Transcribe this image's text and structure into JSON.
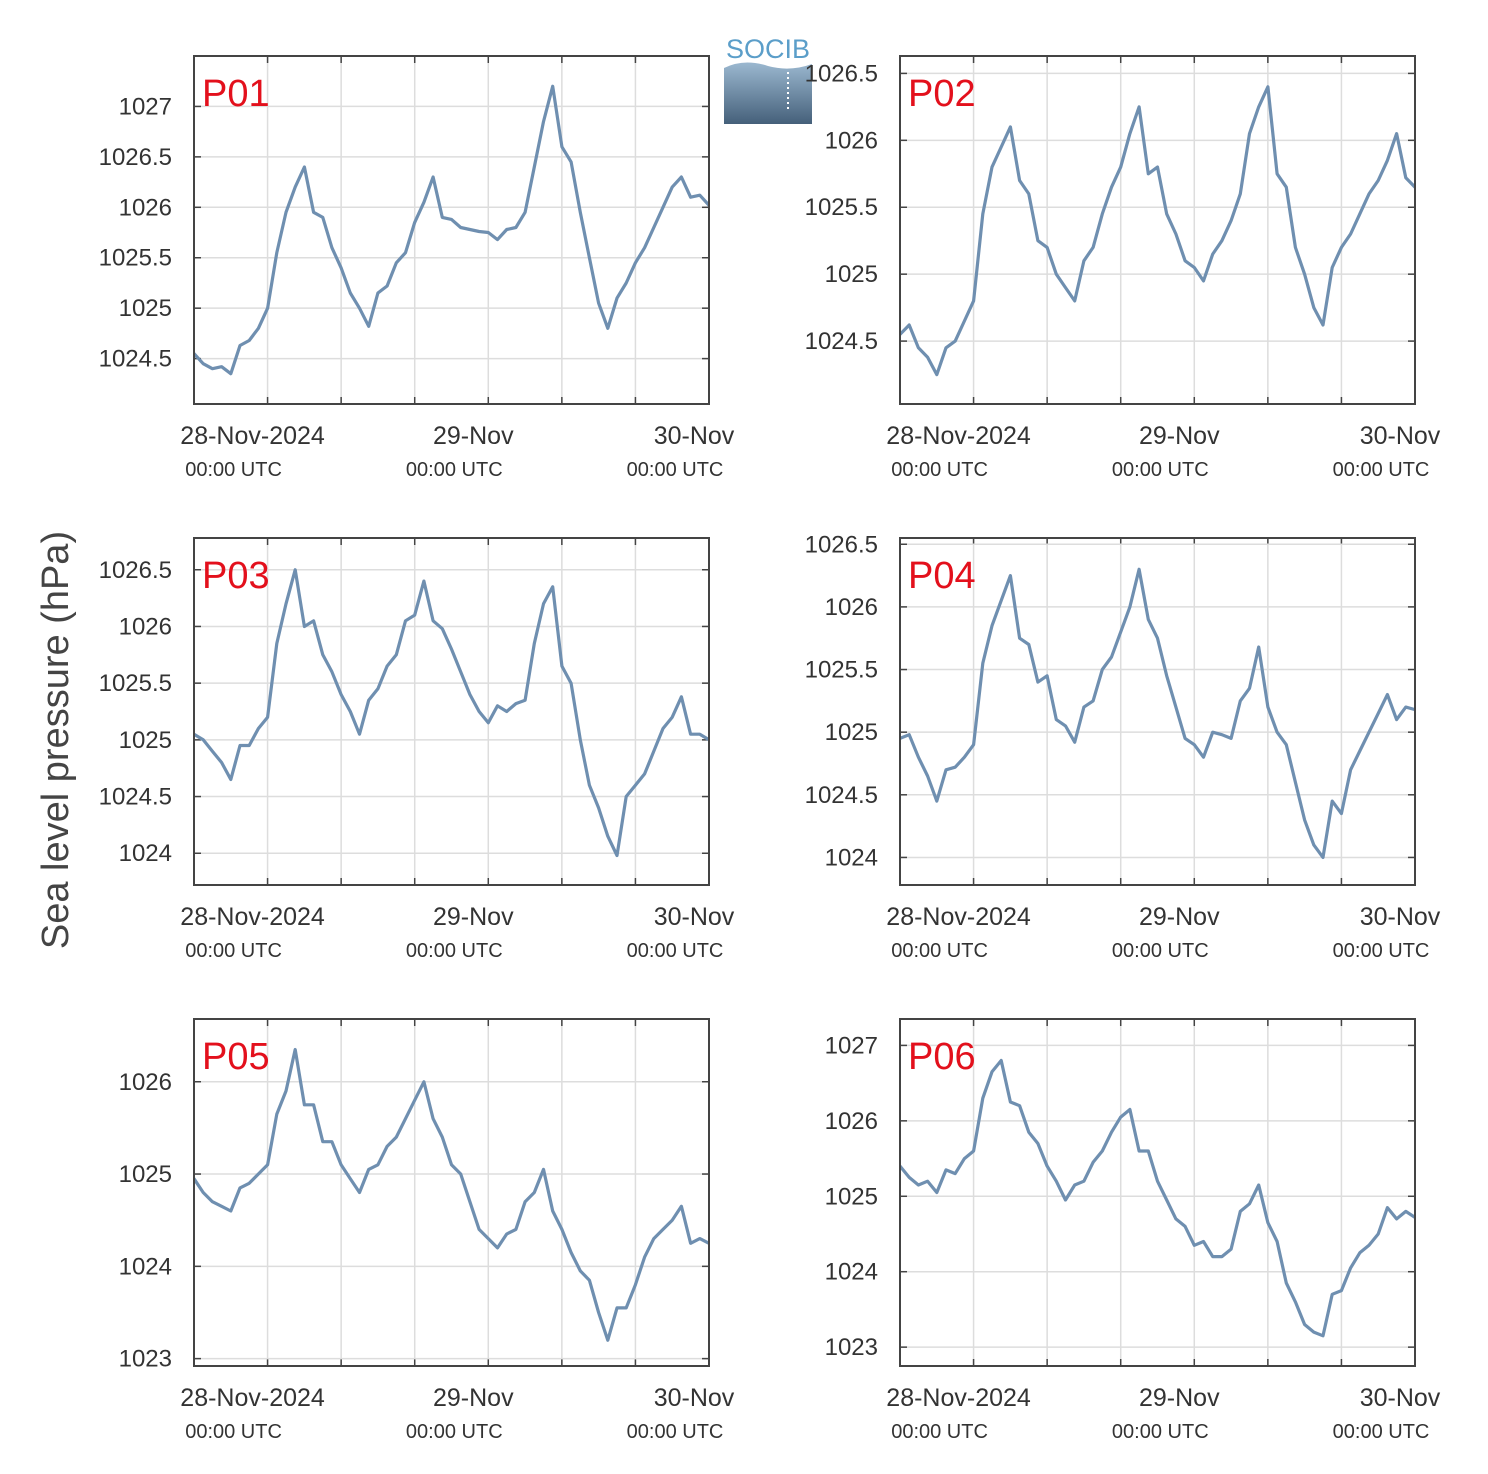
{
  "logo": {
    "text": "SOCIB",
    "color": "#5b9ec9"
  },
  "colors": {
    "line": "#6f8fb0",
    "panel_label": "#e3101c",
    "grid": "#dddddd",
    "axis": "#444444"
  },
  "shared": {
    "ylabel": "Sea level pressure (hPa)",
    "x_ticks": [
      {
        "hour": 0,
        "date": "28-Nov-2024",
        "time": "00:00 UTC"
      },
      {
        "hour": 24,
        "date": "29-Nov",
        "time": "00:00 UTC"
      },
      {
        "hour": 48,
        "date": "30-Nov",
        "time": "00:00 UTC"
      }
    ]
  },
  "chart_data": [
    {
      "type": "line",
      "title": "P01",
      "xunit": "hours since 28-Nov-2024 00:00 UTC",
      "xlim": [
        -8,
        48
      ],
      "ylim": [
        1024.05,
        1027.5
      ],
      "yticks": [
        1024.5,
        1025,
        1025.5,
        1026,
        1026.5,
        1027
      ],
      "ytick_labels": [
        "1024.5",
        "1025",
        "1025.5",
        "1026",
        "1026.5",
        "1027"
      ],
      "x": [
        -8,
        -7,
        -6,
        -5,
        -4,
        -3,
        -2,
        -1,
        0,
        1,
        2,
        3,
        4,
        5,
        6,
        7,
        8,
        9,
        10,
        11,
        12,
        13,
        14,
        15,
        16,
        17,
        18,
        19,
        20,
        21,
        22,
        23,
        24,
        25,
        26,
        27,
        28,
        29,
        30,
        31,
        32,
        33,
        34,
        35,
        36,
        37,
        38,
        39,
        40,
        41,
        42,
        43,
        44,
        45,
        46,
        47,
        48
      ],
      "y": [
        1024.55,
        1024.45,
        1024.4,
        1024.42,
        1024.35,
        1024.63,
        1024.68,
        1024.8,
        1025.0,
        1025.55,
        1025.95,
        1026.2,
        1026.4,
        1025.95,
        1025.9,
        1025.6,
        1025.4,
        1025.15,
        1025.0,
        1024.82,
        1025.15,
        1025.22,
        1025.45,
        1025.55,
        1025.85,
        1026.05,
        1026.3,
        1025.9,
        1025.88,
        1025.8,
        1025.78,
        1025.76,
        1025.75,
        1025.68,
        1025.78,
        1025.8,
        1025.95,
        1026.4,
        1026.85,
        1027.2,
        1026.6,
        1026.45,
        1025.95,
        1025.5,
        1025.05,
        1024.8,
        1025.1,
        1025.25,
        1025.45,
        1025.6,
        1025.8,
        1026.0,
        1026.2,
        1026.3,
        1026.1,
        1026.12,
        1026.02
      ]
    },
    {
      "type": "line",
      "title": "P02",
      "xunit": "hours since 28-Nov-2024 00:00 UTC",
      "xlim": [
        -8,
        48
      ],
      "ylim": [
        1024.03,
        1026.63
      ],
      "yticks": [
        1024.5,
        1025,
        1025.5,
        1026,
        1026.5
      ],
      "ytick_labels": [
        "1024.5",
        "1025",
        "1025.5",
        "1026",
        "1026.5"
      ],
      "x": [
        -8,
        -7,
        -6,
        -5,
        -4,
        -3,
        -2,
        -1,
        0,
        1,
        2,
        3,
        4,
        5,
        6,
        7,
        8,
        9,
        10,
        11,
        12,
        13,
        14,
        15,
        16,
        17,
        18,
        19,
        20,
        21,
        22,
        23,
        24,
        25,
        26,
        27,
        28,
        29,
        30,
        31,
        32,
        33,
        34,
        35,
        36,
        37,
        38,
        39,
        40,
        41,
        42,
        43,
        44,
        45,
        46,
        47,
        48
      ],
      "y": [
        1024.55,
        1024.62,
        1024.45,
        1024.38,
        1024.25,
        1024.45,
        1024.5,
        1024.65,
        1024.8,
        1025.45,
        1025.8,
        1025.95,
        1026.1,
        1025.7,
        1025.6,
        1025.25,
        1025.2,
        1025.0,
        1024.9,
        1024.8,
        1025.1,
        1025.2,
        1025.45,
        1025.65,
        1025.8,
        1026.05,
        1026.25,
        1025.75,
        1025.8,
        1025.45,
        1025.3,
        1025.1,
        1025.05,
        1024.95,
        1025.15,
        1025.25,
        1025.4,
        1025.6,
        1026.05,
        1026.25,
        1026.4,
        1025.75,
        1025.65,
        1025.2,
        1025.0,
        1024.75,
        1024.62,
        1025.05,
        1025.2,
        1025.3,
        1025.45,
        1025.6,
        1025.7,
        1025.85,
        1026.05,
        1025.72,
        1025.65
      ]
    },
    {
      "type": "line",
      "title": "P03",
      "xunit": "hours since 28-Nov-2024 00:00 UTC",
      "xlim": [
        -8,
        48
      ],
      "ylim": [
        1023.72,
        1026.78
      ],
      "yticks": [
        1024,
        1024.5,
        1025,
        1025.5,
        1026,
        1026.5
      ],
      "ytick_labels": [
        "1024",
        "1024.5",
        "1025",
        "1025.5",
        "1026",
        "1026.5"
      ],
      "x": [
        -8,
        -7,
        -6,
        -5,
        -4,
        -3,
        -2,
        -1,
        0,
        1,
        2,
        3,
        4,
        5,
        6,
        7,
        8,
        9,
        10,
        11,
        12,
        13,
        14,
        15,
        16,
        17,
        18,
        19,
        20,
        21,
        22,
        23,
        24,
        25,
        26,
        27,
        28,
        29,
        30,
        31,
        32,
        33,
        34,
        35,
        36,
        37,
        38,
        39,
        40,
        41,
        42,
        43,
        44,
        45,
        46,
        47,
        48
      ],
      "y": [
        1025.05,
        1025.0,
        1024.9,
        1024.8,
        1024.65,
        1024.95,
        1024.95,
        1025.1,
        1025.2,
        1025.85,
        1026.2,
        1026.5,
        1026.0,
        1026.05,
        1025.75,
        1025.6,
        1025.4,
        1025.25,
        1025.05,
        1025.35,
        1025.45,
        1025.65,
        1025.75,
        1026.05,
        1026.1,
        1026.4,
        1026.05,
        1025.98,
        1025.8,
        1025.6,
        1025.4,
        1025.25,
        1025.15,
        1025.3,
        1025.25,
        1025.32,
        1025.35,
        1025.85,
        1026.2,
        1026.35,
        1025.65,
        1025.5,
        1025.0,
        1024.6,
        1024.4,
        1024.15,
        1023.98,
        1024.5,
        1024.6,
        1024.7,
        1024.9,
        1025.1,
        1025.2,
        1025.38,
        1025.05,
        1025.05,
        1025.0
      ]
    },
    {
      "type": "line",
      "title": "P04",
      "xunit": "hours since 28-Nov-2024 00:00 UTC",
      "xlim": [
        -8,
        48
      ],
      "ylim": [
        1023.78,
        1026.55
      ],
      "yticks": [
        1024,
        1024.5,
        1025,
        1025.5,
        1026,
        1026.5
      ],
      "ytick_labels": [
        "1024",
        "1024.5",
        "1025",
        "1025.5",
        "1026",
        "1026.5"
      ],
      "x": [
        -8,
        -7,
        -6,
        -5,
        -4,
        -3,
        -2,
        -1,
        0,
        1,
        2,
        3,
        4,
        5,
        6,
        7,
        8,
        9,
        10,
        11,
        12,
        13,
        14,
        15,
        16,
        17,
        18,
        19,
        20,
        21,
        22,
        23,
        24,
        25,
        26,
        27,
        28,
        29,
        30,
        31,
        32,
        33,
        34,
        35,
        36,
        37,
        38,
        39,
        40,
        41,
        42,
        43,
        44,
        45,
        46,
        47,
        48
      ],
      "y": [
        1024.95,
        1024.98,
        1024.8,
        1024.65,
        1024.45,
        1024.7,
        1024.72,
        1024.8,
        1024.9,
        1025.55,
        1025.85,
        1026.05,
        1026.25,
        1025.75,
        1025.7,
        1025.4,
        1025.45,
        1025.1,
        1025.05,
        1024.92,
        1025.2,
        1025.25,
        1025.5,
        1025.6,
        1025.8,
        1026.0,
        1026.3,
        1025.9,
        1025.75,
        1025.45,
        1025.2,
        1024.95,
        1024.9,
        1024.8,
        1025.0,
        1024.98,
        1024.95,
        1025.25,
        1025.35,
        1025.68,
        1025.2,
        1025.0,
        1024.9,
        1024.6,
        1024.3,
        1024.1,
        1024.0,
        1024.45,
        1024.35,
        1024.7,
        1024.85,
        1025.0,
        1025.15,
        1025.3,
        1025.1,
        1025.2,
        1025.18
      ]
    },
    {
      "type": "line",
      "title": "P05",
      "xunit": "hours since 28-Nov-2024 00:00 UTC",
      "xlim": [
        -8,
        48
      ],
      "ylim": [
        1022.92,
        1026.68
      ],
      "yticks": [
        1023,
        1024,
        1025,
        1026
      ],
      "ytick_labels": [
        "1023",
        "1024",
        "1025",
        "1026"
      ],
      "x": [
        -8,
        -7,
        -6,
        -5,
        -4,
        -3,
        -2,
        -1,
        0,
        1,
        2,
        3,
        4,
        5,
        6,
        7,
        8,
        9,
        10,
        11,
        12,
        13,
        14,
        15,
        16,
        17,
        18,
        19,
        20,
        21,
        22,
        23,
        24,
        25,
        26,
        27,
        28,
        29,
        30,
        31,
        32,
        33,
        34,
        35,
        36,
        37,
        38,
        39,
        40,
        41,
        42,
        43,
        44,
        45,
        46,
        47,
        48
      ],
      "y": [
        1024.95,
        1024.8,
        1024.7,
        1024.65,
        1024.6,
        1024.85,
        1024.9,
        1025.0,
        1025.1,
        1025.65,
        1025.9,
        1026.35,
        1025.75,
        1025.75,
        1025.35,
        1025.35,
        1025.1,
        1024.95,
        1024.8,
        1025.05,
        1025.1,
        1025.3,
        1025.4,
        1025.6,
        1025.8,
        1026.0,
        1025.6,
        1025.4,
        1025.1,
        1025.0,
        1024.7,
        1024.4,
        1024.3,
        1024.2,
        1024.35,
        1024.4,
        1024.7,
        1024.8,
        1025.05,
        1024.6,
        1024.4,
        1024.15,
        1023.95,
        1023.85,
        1023.5,
        1023.2,
        1023.55,
        1023.55,
        1023.8,
        1024.1,
        1024.3,
        1024.4,
        1024.5,
        1024.65,
        1024.25,
        1024.3,
        1024.25
      ]
    },
    {
      "type": "line",
      "title": "P06",
      "xunit": "hours since 28-Nov-2024 00:00 UTC",
      "xlim": [
        -8,
        48
      ],
      "ylim": [
        1022.75,
        1027.35
      ],
      "yticks": [
        1023,
        1024,
        1025,
        1026,
        1027
      ],
      "ytick_labels": [
        "1023",
        "1024",
        "1025",
        "1026",
        "1027"
      ],
      "x": [
        -8,
        -7,
        -6,
        -5,
        -4,
        -3,
        -2,
        -1,
        0,
        1,
        2,
        3,
        4,
        5,
        6,
        7,
        8,
        9,
        10,
        11,
        12,
        13,
        14,
        15,
        16,
        17,
        18,
        19,
        20,
        21,
        22,
        23,
        24,
        25,
        26,
        27,
        28,
        29,
        30,
        31,
        32,
        33,
        34,
        35,
        36,
        37,
        38,
        39,
        40,
        41,
        42,
        43,
        44,
        45,
        46,
        47,
        48
      ],
      "y": [
        1025.4,
        1025.25,
        1025.15,
        1025.2,
        1025.05,
        1025.35,
        1025.3,
        1025.5,
        1025.6,
        1026.3,
        1026.65,
        1026.8,
        1026.25,
        1026.2,
        1025.85,
        1025.7,
        1025.4,
        1025.2,
        1024.95,
        1025.15,
        1025.2,
        1025.45,
        1025.6,
        1025.85,
        1026.05,
        1026.15,
        1025.6,
        1025.6,
        1025.2,
        1024.95,
        1024.7,
        1024.6,
        1024.35,
        1024.4,
        1024.2,
        1024.2,
        1024.3,
        1024.8,
        1024.9,
        1025.15,
        1024.65,
        1024.4,
        1023.85,
        1023.6,
        1023.3,
        1023.2,
        1023.15,
        1023.7,
        1023.75,
        1024.05,
        1024.25,
        1024.35,
        1024.5,
        1024.85,
        1024.7,
        1024.8,
        1024.72
      ]
    }
  ]
}
